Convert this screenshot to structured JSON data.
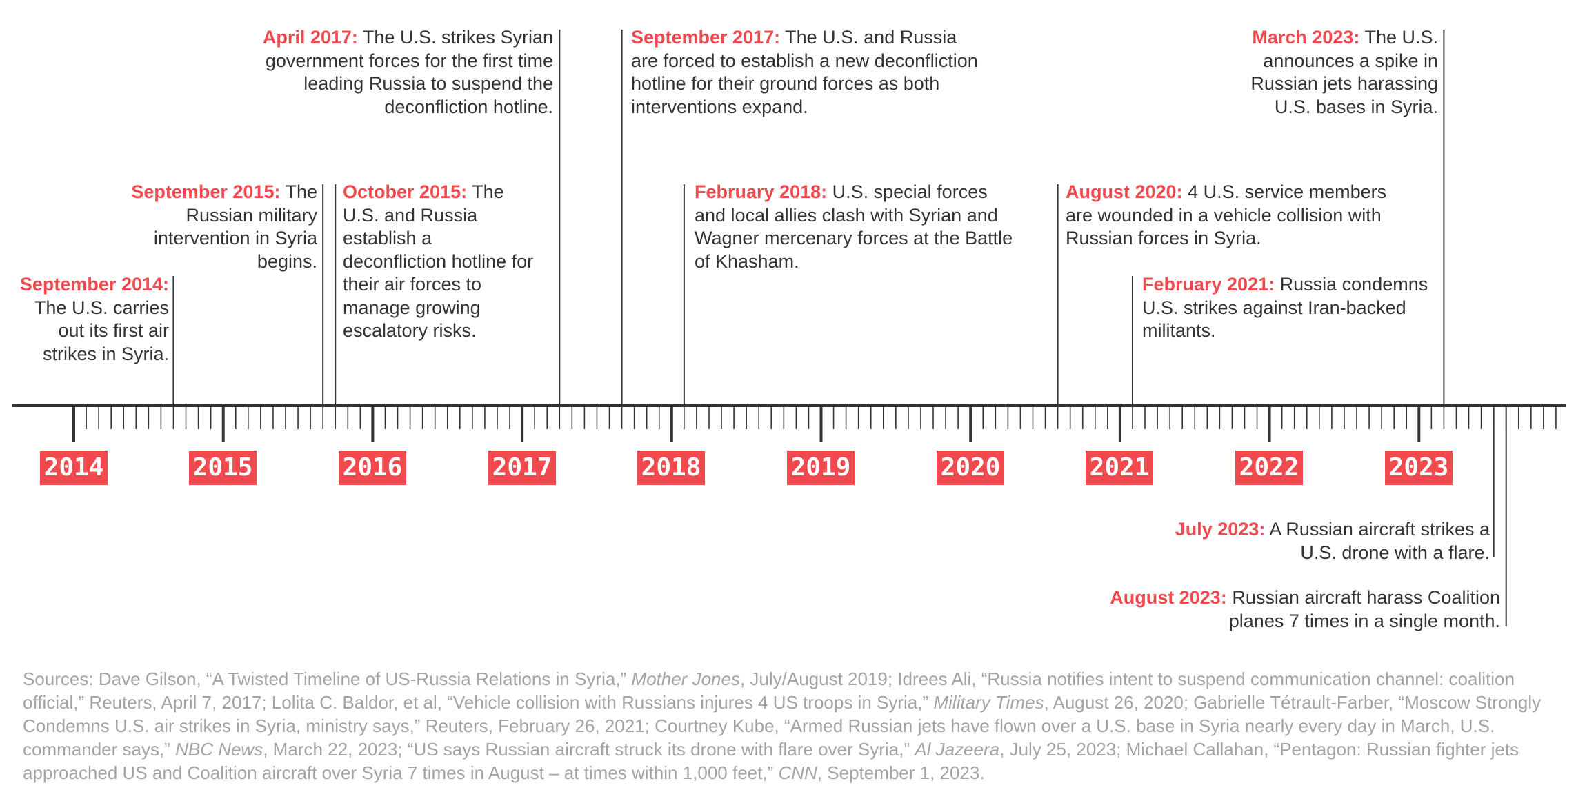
{
  "colors": {
    "accent": "#f04a4f",
    "line": "#333333",
    "text": "#333333",
    "sources_text": "#a3a3a3"
  },
  "years": [
    "2014",
    "2015",
    "2016",
    "2017",
    "2018",
    "2019",
    "2020",
    "2021",
    "2022",
    "2023"
  ],
  "events": [
    {
      "id": "sep2014",
      "date": "September 2014:",
      "text": "The U.S. carries out its first air strikes in Syria.",
      "year": 2014,
      "month": 9,
      "side": "above"
    },
    {
      "id": "sep2015",
      "date": "September 2015:",
      "text": "The Russian military intervention in Syria begins.",
      "year": 2015,
      "month": 9,
      "side": "above"
    },
    {
      "id": "oct2015",
      "date": "October 2015:",
      "text": "The U.S. and Russia establish a deconfliction hotline for their air forces to manage growing escalatory risks.",
      "year": 2015,
      "month": 10,
      "side": "above"
    },
    {
      "id": "apr2017",
      "date": "April 2017:",
      "text": "The U.S. strikes Syrian government forces for the first time leading Russia to suspend the deconfliction hotline.",
      "year": 2017,
      "month": 4,
      "side": "above"
    },
    {
      "id": "sep2017",
      "date": "September 2017:",
      "text": "The U.S. and Russia are forced to establish a new deconfliction hotline for their ground forces as both interventions expand.",
      "year": 2017,
      "month": 9,
      "side": "above"
    },
    {
      "id": "feb2018",
      "date": "February 2018:",
      "text": "U.S. special forces and local allies clash with Syrian and Wagner mercenary forces at the Battle of Khasham.",
      "year": 2018,
      "month": 2,
      "side": "above"
    },
    {
      "id": "aug2020",
      "date": "August 2020:",
      "text": "4 U.S. service members are wounded in a vehicle collision with Russian forces in Syria.",
      "year": 2020,
      "month": 8,
      "side": "above"
    },
    {
      "id": "feb2021",
      "date": "February 2021:",
      "text": "Russia condemns U.S. strikes against Iran-backed militants.",
      "year": 2021,
      "month": 2,
      "side": "above"
    },
    {
      "id": "mar2023",
      "date": "March 2023:",
      "text": "The U.S. announces a spike in Russian jets harassing U.S. bases in Syria.",
      "year": 2023,
      "month": 3,
      "side": "above"
    },
    {
      "id": "jul2023",
      "date": "July 2023:",
      "text": "A Russian aircraft strikes a U.S. drone with a flare.",
      "year": 2023,
      "month": 7,
      "side": "below"
    },
    {
      "id": "aug2023",
      "date": "August 2023:",
      "text": "Russian aircraft harass Coalition planes 7 times in a single month.",
      "year": 2023,
      "month": 8,
      "side": "below"
    }
  ],
  "sources": [
    {
      "t": "Sources: Dave Gilson, “A Twisted Timeline of US-Russia Relations in Syria,” "
    },
    {
      "t": "Mother Jones",
      "i": true
    },
    {
      "t": ", July/August 2019; Idrees Ali, “Russia notifies intent to suspend communication channel: coalition official,” Reuters, April 7, 2017; Lolita C. Baldor, et al, “Vehicle collision with Russians injures 4 US troops in Syria,” "
    },
    {
      "t": "Military Times",
      "i": true
    },
    {
      "t": ", August 26, 2020; Gabrielle Tétrault-Farber, “Moscow Strongly Condemns U.S. air strikes in Syria, ministry says,” Reuters, February 26, 2021; Courtney Kube, “Armed Russian jets have flown over a U.S. base in Syria nearly every day in March, U.S. commander says,” "
    },
    {
      "t": "NBC News",
      "i": true
    },
    {
      "t": ", March 22, 2023; “US says Russian aircraft struck its drone with flare over Syria,” "
    },
    {
      "t": "Al Jazeera",
      "i": true
    },
    {
      "t": ", July 25, 2023; Michael Callahan, “Pentagon: Russian fighter jets approached US and Coalition aircraft over Syria 7 times in August – at times within 1,000 feet,” "
    },
    {
      "t": "CNN",
      "i": true
    },
    {
      "t": ", September 1, 2023."
    }
  ]
}
